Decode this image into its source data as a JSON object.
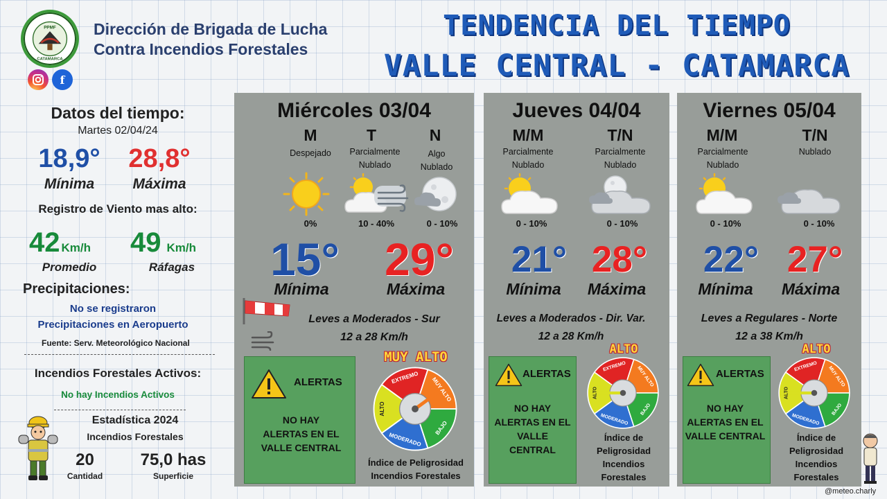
{
  "header": {
    "org_line1": "Dirección de Brigada de Lucha",
    "org_line2": "Contra Incendios Forestales",
    "logo_text_top": "BRIGADA DE LUCHA CONTRA INCENDIOS FORESTALES",
    "logo_text_mid": "PPMF",
    "logo_text_bottom": "CATAMARCA",
    "title_line1": "TENDENCIA DEL TIEMPO",
    "title_line2": "VALLE CENTRAL - CATAMARCA",
    "instagram_icon": "instagram-icon",
    "facebook_icon": "facebook-icon"
  },
  "left": {
    "weather_title": "Datos del tiempo:",
    "date": "Martes 02/04/24",
    "min_value": "18,9°",
    "min_label": "Mínima",
    "max_value": "28,8°",
    "max_label": "Máxima",
    "wind_title": "Registro de Viento mas alto:",
    "wind_avg": "42",
    "wind_avg_unit": "Km/h",
    "wind_avg_label": "Promedio",
    "wind_gust": "49",
    "wind_gust_unit": "Km/h",
    "wind_gust_label": "Ráfagas",
    "precip_title": "Precipitaciones:",
    "precip_line1": "No se registraron",
    "precip_line2": "Precipitaciones en Aeropuerto",
    "source": "Fuente: Serv. Meteorológico Nacional",
    "fires_title": "Incendios Forestales Activos:",
    "fires_status": "No hay Incendios Activos",
    "stats_title": "Estadística 2024",
    "stats_subtitle": "Incendios Forestales",
    "count_value": "20",
    "count_label": "Cantidad",
    "area_value": "75,0 has",
    "area_label": "Superficie"
  },
  "days": [
    {
      "title": "Miércoles 03/04",
      "periods": [
        {
          "label": "M",
          "desc": [
            "Despejado"
          ],
          "icon": "sun-icon",
          "pct": "0%"
        },
        {
          "label": "T",
          "desc": [
            "Parcialmente",
            "Nublado"
          ],
          "icon": "partly-cloudy-wind-icon",
          "pct": "10 - 40%"
        },
        {
          "label": "N",
          "desc": [
            "Algo",
            "Nublado"
          ],
          "icon": "moon-cloud-icon",
          "pct": "0 - 10%"
        }
      ],
      "min": "15°",
      "min_label": "Mínima",
      "max": "29°",
      "max_label": "Máxima",
      "wind_line1": "Leves a Moderados - Sur",
      "wind_line2": "12 a 28 Km/h",
      "alert_title": "ALERTAS",
      "alert_text": [
        "NO HAY",
        "ALERTAS EN EL",
        "VALLE CENTRAL"
      ],
      "danger_level": "MUY ALTO",
      "index_text": [
        "Índice de Peligrosidad",
        "Incendios Forestales"
      ]
    },
    {
      "title": "Jueves 04/04",
      "periods": [
        {
          "label": "M/M",
          "desc": [
            "Parcialmente",
            "Nublado"
          ],
          "icon": "partly-cloudy-icon",
          "pct": "0 - 10%"
        },
        {
          "label": "T/N",
          "desc": [
            "Parcialmente",
            "Nublado"
          ],
          "icon": "moon-cloudy-icon",
          "pct": "0 - 10%"
        }
      ],
      "min": "21°",
      "min_label": "Mínima",
      "max": "28°",
      "max_label": "Máxima",
      "wind_line1": "Leves a Moderados - Dir. Var.",
      "wind_line2": "12 a 28 Km/h",
      "alert_title": "ALERTAS",
      "alert_text": [
        "NO HAY",
        "ALERTAS EN EL",
        "VALLE",
        "CENTRAL"
      ],
      "danger_level": "ALTO",
      "index_text": [
        "Índice de",
        "Peligrosidad",
        "Incendios",
        "Forestales"
      ]
    },
    {
      "title": "Viernes 05/04",
      "periods": [
        {
          "label": "M/M",
          "desc": [
            "Parcialmente",
            "Nublado"
          ],
          "icon": "partly-cloudy-icon",
          "pct": "0 - 10%"
        },
        {
          "label": "T/N",
          "desc": [
            "Nublado"
          ],
          "icon": "cloudy-icon",
          "pct": "0 - 10%"
        }
      ],
      "min": "22°",
      "min_label": "Mínima",
      "max": "27°",
      "max_label": "Máxima",
      "wind_line1": "Leves a Regulares - Norte",
      "wind_line2": "12 a 38 Km/h",
      "alert_title": "ALERTAS",
      "alert_text": [
        "NO HAY",
        "ALERTAS EN EL",
        "VALLE CENTRAL"
      ],
      "danger_level": "ALTO",
      "index_text": [
        "Índice de",
        "Peligrosidad",
        "Incendios",
        "Forestales"
      ]
    }
  ],
  "gauge": {
    "segments": [
      "EXTREMO",
      "MUY ALTO",
      "BAJO",
      "MODERADO",
      "ALTO"
    ],
    "colors": {
      "extremo": "#e02424",
      "muy_alto": "#f47a1f",
      "bajo": "#2faa3f",
      "moderado": "#2f6fd0",
      "alto": "#d9e021"
    }
  },
  "credit": "@meteo.charly"
}
